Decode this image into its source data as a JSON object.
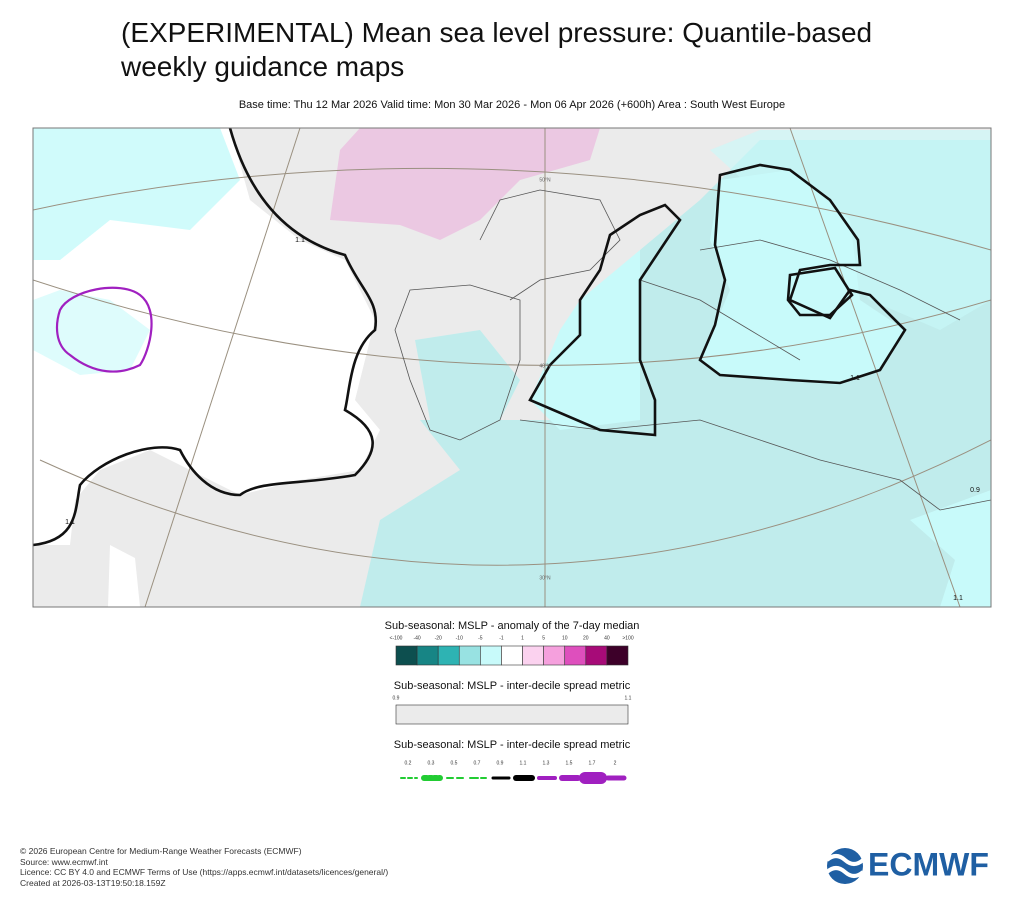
{
  "header": {
    "title": "(EXPERIMENTAL) Mean sea level pressure: Quantile-based weekly guidance maps",
    "subtitle": "Base time: Thu 12 Mar 2026 Valid time: Mon 30 Mar 2026 - Mon 06 Apr 2026 (+600h) Area : South West Europe"
  },
  "map": {
    "grid_labels": [
      "50°N",
      "40°N",
      "30°N"
    ],
    "contour_labels": [
      "1.1",
      "1.1",
      "1.1",
      "0.9",
      "1.1"
    ]
  },
  "legends": [
    {
      "title": "Sub-seasonal: MSLP - anomaly of the 7-day median",
      "labels": [
        "<-100",
        "-40",
        "-20",
        "-10",
        "-5",
        "-1",
        "1",
        "5",
        "10",
        "20",
        "40",
        ">100"
      ],
      "colors": [
        "#0d4f4f",
        "#178585",
        "#2eb3b3",
        "#98e2e2",
        "#c8fafa",
        "#ffffff",
        "#fbd2ef",
        "#f5a0dd",
        "#de4fbd",
        "#a70b78",
        "#3d0029"
      ]
    },
    {
      "title": "Sub-seasonal: MSLP - inter-decile spread metric",
      "labels": [
        "0.9",
        "1.1"
      ],
      "colors": [
        "#ebebeb"
      ]
    },
    {
      "title": "Sub-seasonal: MSLP - inter-decile spread metric",
      "labels": [
        "0.2",
        "0.3",
        "0.5",
        "0.7",
        "0.9",
        "1.1",
        "1.3",
        "1.5",
        "1.7",
        "2"
      ]
    }
  ],
  "footer": {
    "lines": [
      "© 2026 European Centre for Medium-Range Weather Forecasts (ECMWF)",
      "Source: www.ecmwf.int",
      "Licence: CC BY 4.0 and ECMWF Terms of Use (https://apps.ecmwf.int/datasets/licences/general/)",
      "Created at 2026-03-13T19:50:18.159Z"
    ],
    "logo": "ECMWF"
  }
}
